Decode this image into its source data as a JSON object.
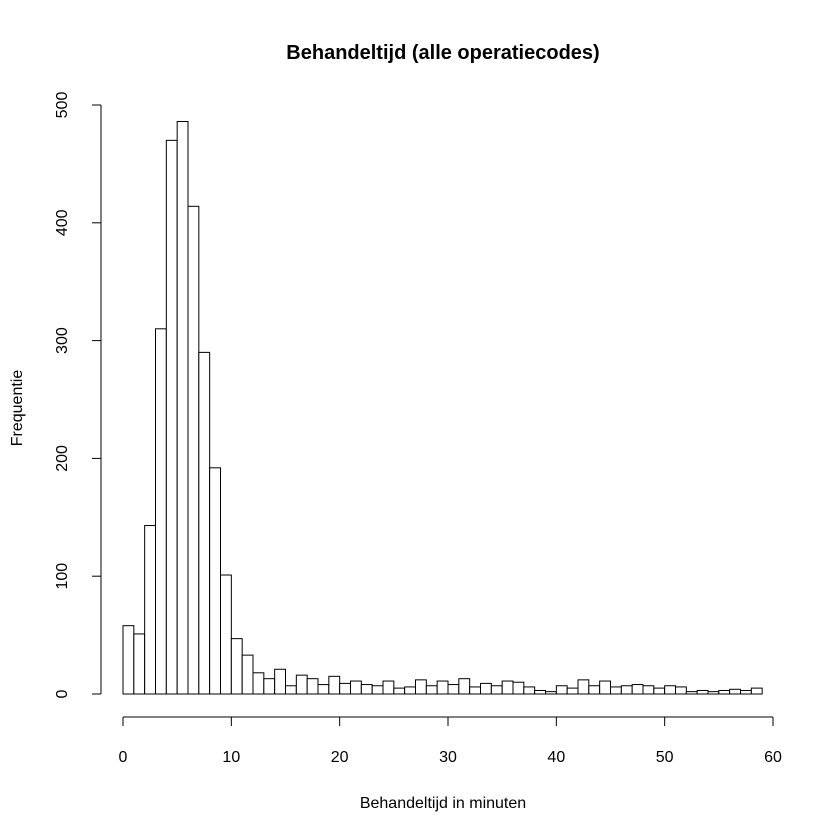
{
  "chart_data": {
    "type": "bar",
    "title": "Behandeltijd (alle operatiecodes)",
    "xlabel": "Behandeltijd in minuten",
    "ylabel": "Frequentie",
    "xlim": [
      0,
      60
    ],
    "ylim": [
      0,
      500
    ],
    "x_ticks": [
      0,
      10,
      20,
      30,
      40,
      50,
      60
    ],
    "y_ticks": [
      0,
      100,
      200,
      300,
      400,
      500
    ],
    "bin_width": 1,
    "bin_starts": [
      0,
      1,
      2,
      3,
      4,
      5,
      6,
      7,
      8,
      9,
      10,
      11,
      12,
      13,
      14,
      15,
      16,
      17,
      18,
      19,
      20,
      21,
      22,
      23,
      24,
      25,
      26,
      27,
      28,
      29,
      30,
      31,
      32,
      33,
      34,
      35,
      36,
      37,
      38,
      39,
      40,
      41,
      42,
      43,
      44,
      45,
      46,
      47,
      48,
      49,
      50,
      51,
      52,
      53,
      54,
      55,
      56,
      57,
      58
    ],
    "values": [
      58,
      51,
      143,
      310,
      470,
      486,
      414,
      290,
      192,
      101,
      47,
      33,
      18,
      13,
      21,
      7,
      16,
      13,
      8,
      15,
      9,
      11,
      8,
      7,
      11,
      5,
      6,
      12,
      7,
      11,
      8,
      13,
      6,
      9,
      7,
      11,
      10,
      6,
      3,
      2,
      7,
      5,
      12,
      7,
      11,
      6,
      7,
      8,
      7,
      5,
      7,
      6,
      2,
      3,
      2,
      3,
      4,
      3,
      5
    ],
    "grid": false,
    "legend": "none"
  }
}
